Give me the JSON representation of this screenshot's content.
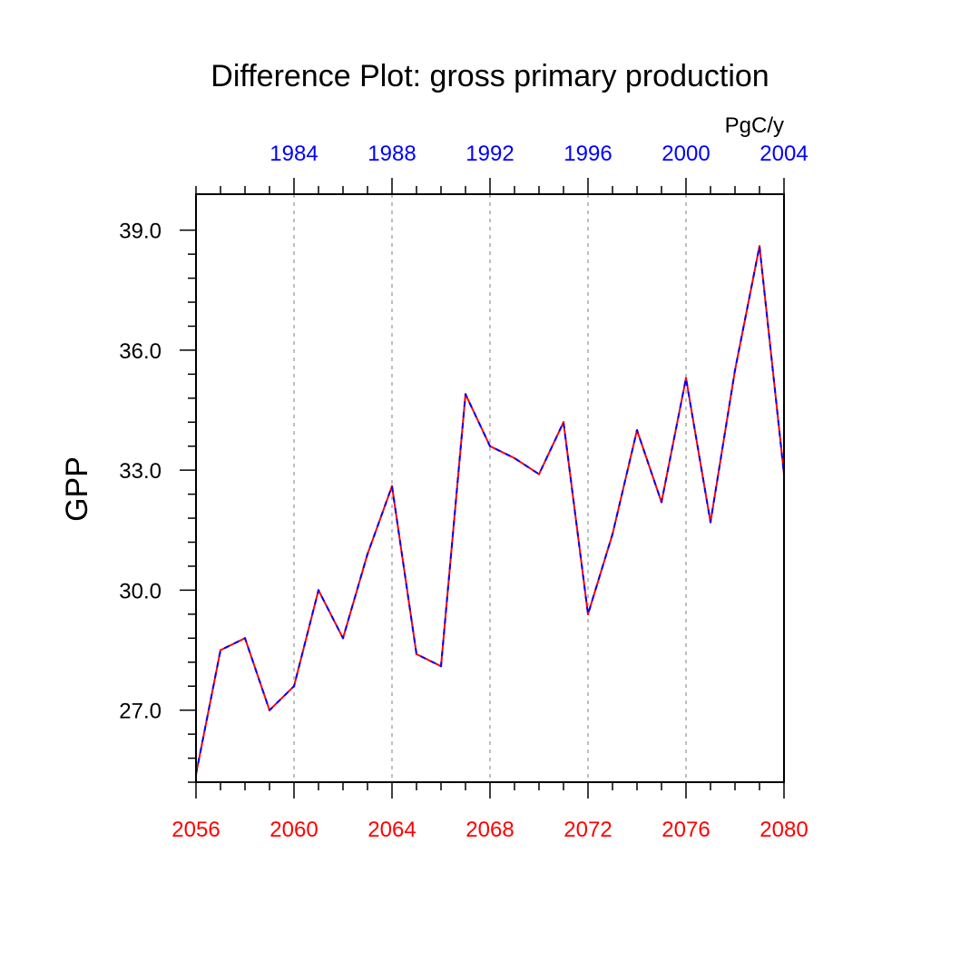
{
  "chart_data": {
    "type": "line",
    "title": "Difference Plot: gross primary production",
    "units": "PgC/y",
    "ylabel": "GPP",
    "xlabel": "",
    "ylim": [
      25.2,
      39.9
    ],
    "yticks": [
      "39.0",
      "36.0",
      "33.0",
      "30.0",
      "27.0"
    ],
    "ytick_values": [
      39,
      36,
      33,
      30,
      27
    ],
    "bottom_axis": {
      "range": [
        2056,
        2080
      ],
      "ticks": [
        2056,
        2060,
        2064,
        2068,
        2072,
        2076,
        2080
      ],
      "labels": [
        "2056",
        "2060",
        "2064",
        "2068",
        "2072",
        "2076",
        "2080"
      ],
      "color": "#ff0000"
    },
    "top_axis": {
      "range": [
        1980,
        2004
      ],
      "ticks": [
        1984,
        1988,
        1992,
        1996,
        2000,
        2004
      ],
      "labels": [
        "1984",
        "1988",
        "1992",
        "1996",
        "2000",
        "2004"
      ],
      "color": "#0000ff"
    },
    "grid": "vertical dashed at major bottom ticks",
    "series": [
      {
        "line_color": "#ff0000",
        "x": [
          2056,
          2057,
          2058,
          2059,
          2060,
          2061,
          2062,
          2063,
          2064,
          2065,
          2066,
          2067,
          2068,
          2069,
          2070,
          2071,
          2072,
          2073,
          2074,
          2075,
          2076,
          2077,
          2078,
          2079,
          2080
        ],
        "values": [
          25.4,
          28.5,
          28.8,
          27.0,
          27.6,
          30.0,
          28.8,
          30.9,
          32.6,
          28.4,
          28.1,
          34.9,
          33.6,
          33.3,
          32.9,
          34.2,
          29.4,
          31.4,
          34.0,
          32.2,
          35.3,
          31.7,
          35.5,
          38.6,
          32.9
        ]
      },
      {
        "line_color": "#0000ff",
        "dash": true,
        "x": [
          2056,
          2057,
          2058,
          2059,
          2060,
          2061,
          2062,
          2063,
          2064,
          2065,
          2066,
          2067,
          2068,
          2069,
          2070,
          2071,
          2072,
          2073,
          2074,
          2075,
          2076,
          2077,
          2078,
          2079,
          2080
        ],
        "values": [
          25.4,
          28.5,
          28.8,
          27.0,
          27.6,
          30.0,
          28.8,
          30.9,
          32.6,
          28.4,
          28.1,
          34.9,
          33.6,
          33.3,
          32.9,
          34.2,
          29.4,
          31.4,
          34.0,
          32.2,
          35.3,
          31.7,
          35.5,
          38.6,
          32.9
        ]
      }
    ]
  }
}
